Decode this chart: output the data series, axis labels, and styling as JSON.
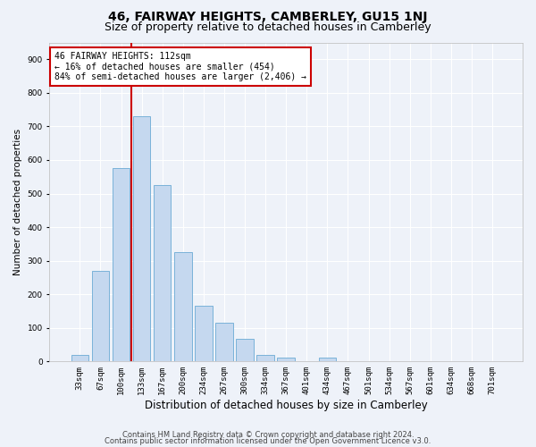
{
  "title": "46, FAIRWAY HEIGHTS, CAMBERLEY, GU15 1NJ",
  "subtitle": "Size of property relative to detached houses in Camberley",
  "xlabel": "Distribution of detached houses by size in Camberley",
  "ylabel": "Number of detached properties",
  "categories": [
    "33sqm",
    "67sqm",
    "100sqm",
    "133sqm",
    "167sqm",
    "200sqm",
    "234sqm",
    "267sqm",
    "300sqm",
    "334sqm",
    "367sqm",
    "401sqm",
    "434sqm",
    "467sqm",
    "501sqm",
    "534sqm",
    "567sqm",
    "601sqm",
    "634sqm",
    "668sqm",
    "701sqm"
  ],
  "values": [
    20,
    270,
    575,
    730,
    525,
    325,
    165,
    115,
    68,
    20,
    12,
    0,
    12,
    0,
    0,
    0,
    0,
    0,
    0,
    0,
    2
  ],
  "bar_color": "#c5d8ef",
  "bar_edge_color": "#6aaad4",
  "annotation_text": "46 FAIRWAY HEIGHTS: 112sqm\n← 16% of detached houses are smaller (454)\n84% of semi-detached houses are larger (2,406) →",
  "annotation_box_color": "#ffffff",
  "annotation_box_edge_color": "#cc0000",
  "vline_color": "#cc0000",
  "vline_x_index": 2.5,
  "ylim": [
    0,
    950
  ],
  "yticks": [
    0,
    100,
    200,
    300,
    400,
    500,
    600,
    700,
    800,
    900
  ],
  "footer_line1": "Contains HM Land Registry data © Crown copyright and database right 2024.",
  "footer_line2": "Contains public sector information licensed under the Open Government Licence v3.0.",
  "bg_color": "#eef2f9",
  "plot_bg_color": "#eef2f9",
  "grid_color": "#ffffff",
  "title_fontsize": 10,
  "subtitle_fontsize": 9,
  "xlabel_fontsize": 8.5,
  "ylabel_fontsize": 7.5,
  "tick_fontsize": 6.5,
  "footer_fontsize": 6,
  "ann_fontsize": 7
}
